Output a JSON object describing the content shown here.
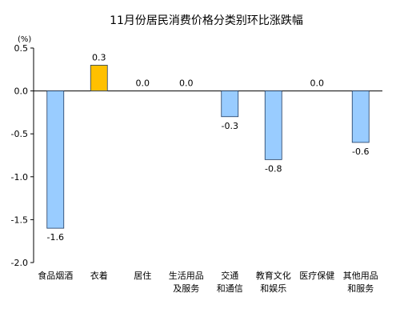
{
  "chart_data": {
    "type": "bar",
    "title": "11月份居民消费价格分类别环比涨跌幅",
    "unit": "(%)",
    "ylim": [
      -2.0,
      0.5
    ],
    "yticks": [
      "0.5",
      "0.0",
      "-0.5",
      "-1.0",
      "-1.5",
      "-2.0"
    ],
    "ytick_values": [
      0.5,
      0.0,
      -0.5,
      -1.0,
      -1.5,
      -2.0
    ],
    "grid": false,
    "categories": [
      [
        "食品烟酒"
      ],
      [
        "衣着"
      ],
      [
        "居住"
      ],
      [
        "生活用品",
        "及服务"
      ],
      [
        "交通",
        "和通信"
      ],
      [
        "教育文化",
        "和娱乐"
      ],
      [
        "医疗保健"
      ],
      [
        "其他用品",
        "和服务"
      ]
    ],
    "values": [
      -1.6,
      0.3,
      0.0,
      0.0,
      -0.3,
      -0.8,
      0.0,
      -0.6
    ],
    "value_labels": [
      "-1.6",
      "0.3",
      "0.0",
      "0.0",
      "-0.3",
      "-0.8",
      "0.0",
      "-0.6"
    ],
    "colors": {
      "negative_fill": "#99CCFF",
      "positive_fill": "#FFC000",
      "bar_stroke": "#1F3A5F",
      "axis": "#000000"
    }
  }
}
